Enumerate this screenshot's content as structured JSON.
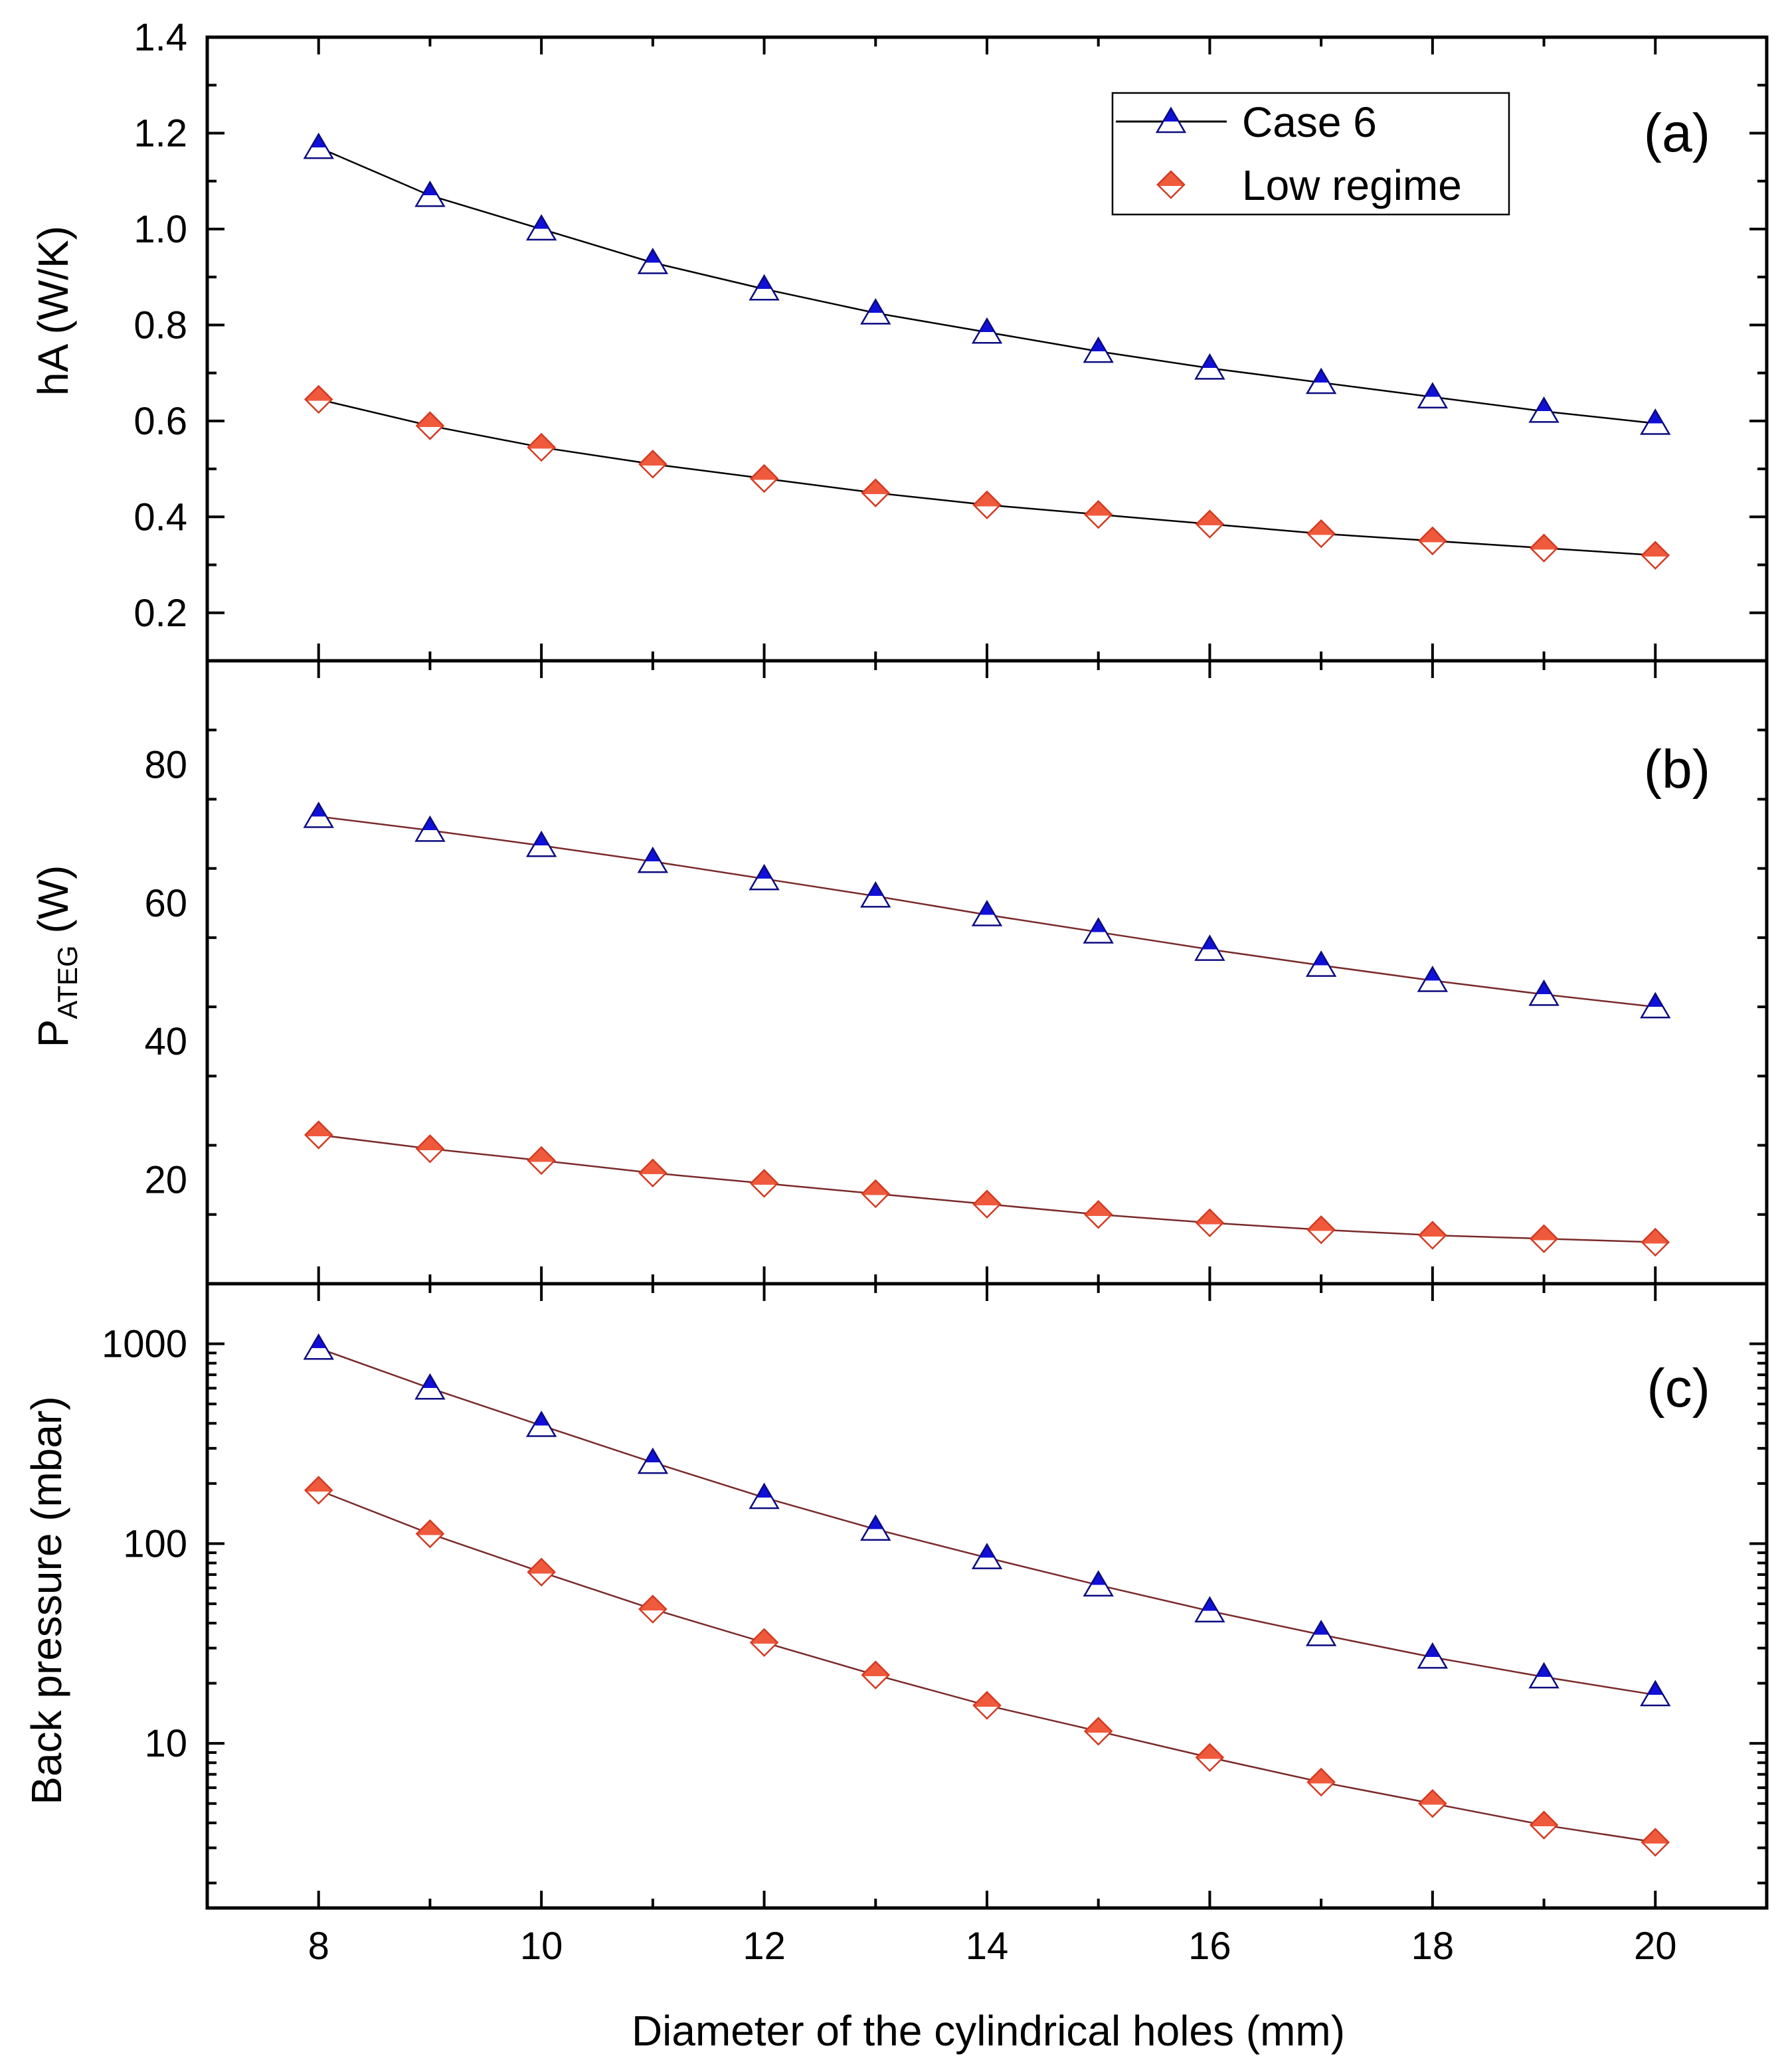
{
  "chart_data": [
    {
      "type": "line",
      "panel_label": "(a)",
      "ylabel": "hA (W/K)",
      "ylim": [
        0.1,
        1.4
      ],
      "yscale": "linear",
      "yticks": [
        0.2,
        0.4,
        0.6,
        0.8,
        1.0,
        1.2,
        1.4
      ],
      "yticklabels": [
        "0.2",
        "0.4",
        "0.6",
        "0.8",
        "1.0",
        "1.2",
        "1.4"
      ],
      "legend": {
        "position": "top-right",
        "entries": [
          "Case 6",
          "Low regime"
        ]
      },
      "x": [
        8,
        9,
        10,
        11,
        12,
        13,
        14,
        15,
        16,
        17,
        18,
        19,
        20
      ],
      "series": [
        {
          "name": "Case 6",
          "marker": "triangle",
          "values": [
            1.17,
            1.07,
            1.0,
            0.93,
            0.875,
            0.825,
            0.785,
            0.745,
            0.71,
            0.68,
            0.65,
            0.62,
            0.595
          ]
        },
        {
          "name": "Low regime",
          "marker": "diamond",
          "values": [
            0.645,
            0.59,
            0.545,
            0.51,
            0.48,
            0.45,
            0.425,
            0.405,
            0.385,
            0.365,
            0.35,
            0.335,
            0.32
          ]
        }
      ]
    },
    {
      "type": "line",
      "panel_label": "(b)",
      "ylabel_main": "P",
      "ylabel_sub": "ATEG",
      "ylabel_unit": " (W)",
      "ylim": [
        5,
        95
      ],
      "yscale": "linear",
      "yticks": [
        20,
        40,
        60,
        80
      ],
      "yticklabels": [
        "20",
        "40",
        "60",
        "80"
      ],
      "x": [
        8,
        9,
        10,
        11,
        12,
        13,
        14,
        15,
        16,
        17,
        18,
        19,
        20
      ],
      "series": [
        {
          "name": "Case 6",
          "marker": "triangle",
          "values": [
            72.5,
            70.5,
            68.3,
            66.0,
            63.5,
            61.0,
            58.3,
            55.8,
            53.3,
            51.0,
            48.8,
            46.8,
            45.0
          ]
        },
        {
          "name": "Low regime",
          "marker": "diamond",
          "values": [
            26.5,
            24.5,
            22.8,
            21.0,
            19.5,
            18.0,
            16.5,
            15.0,
            13.8,
            12.8,
            12.0,
            11.5,
            11.0
          ]
        }
      ]
    },
    {
      "type": "line",
      "panel_label": "(c)",
      "ylabel": "Back pressure (mbar)",
      "ylim": [
        1.5,
        2000
      ],
      "yscale": "log",
      "yticks": [
        10,
        100,
        1000
      ],
      "yticklabels": [
        "10",
        "100",
        "1000"
      ],
      "xlabel": "Diameter of the cylindrical holes (mm)",
      "xlim": [
        7,
        21
      ],
      "xticks": [
        8,
        10,
        12,
        14,
        16,
        18,
        20
      ],
      "xticklabels": [
        "8",
        "10",
        "12",
        "14",
        "16",
        "18",
        "20"
      ],
      "x": [
        8,
        9,
        10,
        11,
        12,
        13,
        14,
        15,
        16,
        17,
        18,
        19,
        20
      ],
      "series": [
        {
          "name": "Case 6",
          "marker": "triangle",
          "values": [
            950,
            600,
            390,
            255,
            170,
            118,
            85,
            62,
            46,
            35,
            27,
            21.5,
            17.5
          ]
        },
        {
          "name": "Low regime",
          "marker": "diamond",
          "values": [
            185,
            112,
            72,
            47,
            32,
            22,
            15.5,
            11.5,
            8.5,
            6.4,
            5.0,
            3.9,
            3.2
          ]
        }
      ]
    }
  ],
  "colors": {
    "case6_fill": "#1010d8",
    "lowregime_fill": "#f05a3c",
    "case6_line": "#000000",
    "lowregime_line": "#7a2a2a"
  }
}
